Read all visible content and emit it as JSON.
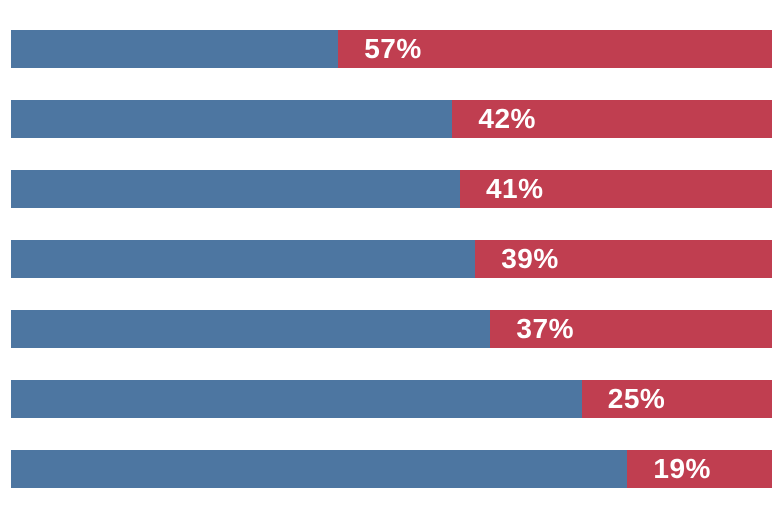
{
  "page": {
    "background": "#FFFFFF"
  },
  "colors": {
    "segment_remainder": "#4D76A1",
    "segment_value": "#C03E50",
    "data_label": "#FFFFFF"
  },
  "chart_data": {
    "type": "bar",
    "orientation": "horizontal",
    "stacked": true,
    "title": "",
    "xlabel": "",
    "ylabel": "",
    "xlim": [
      0,
      100
    ],
    "grid": false,
    "legend": false,
    "series": [
      {
        "name": "remainder-segment",
        "color": "#4D76A1",
        "values": [
          43,
          58,
          59,
          61,
          63,
          75,
          81
        ]
      },
      {
        "name": "value-segment",
        "color": "#C03E50",
        "values": [
          57,
          42,
          41,
          39,
          37,
          25,
          19
        ]
      }
    ],
    "data_labels": [
      "57%",
      "42%",
      "41%",
      "39%",
      "37%",
      "25%",
      "19%"
    ],
    "data_label_color": "#FFFFFF",
    "data_label_position": "start-of-value-segment"
  }
}
